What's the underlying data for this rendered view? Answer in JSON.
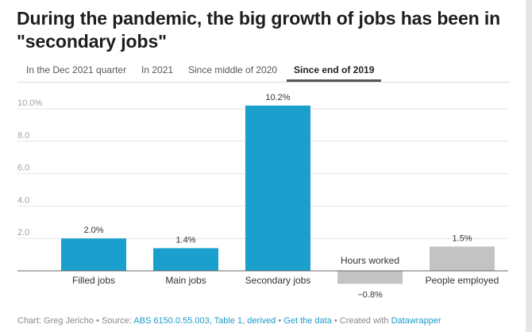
{
  "title": "During the pandemic, the big growth of jobs has been in \"secondary jobs\"",
  "tabs": [
    {
      "label": "In the Dec 2021 quarter",
      "active": false
    },
    {
      "label": "In 2021",
      "active": false
    },
    {
      "label": "Since middle of 2020",
      "active": false
    },
    {
      "label": "Since end of 2019",
      "active": true
    }
  ],
  "colors": {
    "primary": "#1b9fcc",
    "secondary": "#c3c3c3",
    "grid": "#e4e4e4",
    "axis": "#666666"
  },
  "chart_data": {
    "type": "bar",
    "categories": [
      "Filled jobs",
      "Main jobs",
      "Secondary jobs",
      "Hours worked",
      "People employed"
    ],
    "values": [
      2.0,
      1.4,
      10.2,
      -0.8,
      1.5
    ],
    "value_labels": [
      "2.0%",
      "1.4%",
      "10.2%",
      "−0.8%",
      "1.5%"
    ],
    "bar_colors": [
      "#1b9fcc",
      "#1b9fcc",
      "#1b9fcc",
      "#c3c3c3",
      "#c3c3c3"
    ],
    "yticks": [
      2.0,
      4.0,
      6.0,
      8.0,
      10.0
    ],
    "ytick_labels": [
      "2.0",
      "4.0",
      "6.0",
      "8.0",
      "10.0%"
    ],
    "ylim": [
      -1.5,
      10.6
    ],
    "grid": true,
    "title": "",
    "xlabel": "",
    "ylabel": ""
  },
  "footer": {
    "chart_by": "Chart: Greg Jericho",
    "sep1": " • Source: ",
    "source": "ABS 6150.0.55.003, Table 1, derived",
    "sep2": " • ",
    "get_data": "Get the data",
    "sep3": " • Created with ",
    "tool": "Datawrapper"
  }
}
